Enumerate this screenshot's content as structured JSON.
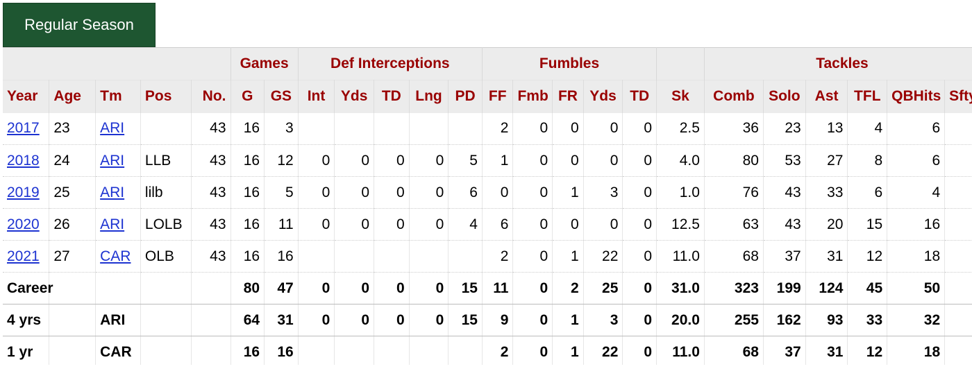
{
  "tab": {
    "label": "Regular Season"
  },
  "colors": {
    "tab_bg": "#1e5631",
    "header_text": "#990000",
    "link": "#1d33d1"
  },
  "over_headers": [
    "Games",
    "Def Interceptions",
    "Fumbles",
    "Tackles"
  ],
  "columns": [
    "Year",
    "Age",
    "Tm",
    "Pos",
    "No.",
    "G",
    "GS",
    "Int",
    "Yds",
    "TD",
    "Lng",
    "PD",
    "FF",
    "Fmb",
    "FR",
    "Yds",
    "TD",
    "Sk",
    "Comb",
    "Solo",
    "Ast",
    "TFL",
    "QBHits",
    "Sfty"
  ],
  "rows": [
    [
      "2017",
      "23",
      "ARI",
      "",
      "43",
      "16",
      "3",
      "",
      "",
      "",
      "",
      "",
      "2",
      "0",
      "0",
      "0",
      "0",
      "2.5",
      "36",
      "23",
      "13",
      "4",
      "6",
      ""
    ],
    [
      "2018",
      "24",
      "ARI",
      "LLB",
      "43",
      "16",
      "12",
      "0",
      "0",
      "0",
      "0",
      "5",
      "1",
      "0",
      "0",
      "0",
      "0",
      "4.0",
      "80",
      "53",
      "27",
      "8",
      "6",
      ""
    ],
    [
      "2019",
      "25",
      "ARI",
      "lilb",
      "43",
      "16",
      "5",
      "0",
      "0",
      "0",
      "0",
      "6",
      "0",
      "0",
      "1",
      "3",
      "0",
      "1.0",
      "76",
      "43",
      "33",
      "6",
      "4",
      ""
    ],
    [
      "2020",
      "26",
      "ARI",
      "LOLB",
      "43",
      "16",
      "11",
      "0",
      "0",
      "0",
      "0",
      "4",
      "6",
      "0",
      "0",
      "0",
      "0",
      "12.5",
      "63",
      "43",
      "20",
      "15",
      "16",
      ""
    ],
    [
      "2021",
      "27",
      "CAR",
      "OLB",
      "43",
      "16",
      "16",
      "",
      "",
      "",
      "",
      "",
      "2",
      "0",
      "1",
      "22",
      "0",
      "11.0",
      "68",
      "37",
      "31",
      "12",
      "18",
      ""
    ]
  ],
  "totals": [
    [
      "Career",
      "",
      "",
      "",
      "",
      "80",
      "47",
      "0",
      "0",
      "0",
      "0",
      "15",
      "11",
      "0",
      "2",
      "25",
      "0",
      "31.0",
      "323",
      "199",
      "124",
      "45",
      "50",
      ""
    ],
    [
      "4 yrs",
      "",
      "ARI",
      "",
      "",
      "64",
      "31",
      "0",
      "0",
      "0",
      "0",
      "15",
      "9",
      "0",
      "1",
      "3",
      "0",
      "20.0",
      "255",
      "162",
      "93",
      "33",
      "32",
      ""
    ],
    [
      "1 yr",
      "",
      "CAR",
      "",
      "",
      "16",
      "16",
      "",
      "",
      "",
      "",
      "",
      "2",
      "0",
      "1",
      "22",
      "0",
      "11.0",
      "68",
      "37",
      "31",
      "12",
      "18",
      ""
    ]
  ]
}
